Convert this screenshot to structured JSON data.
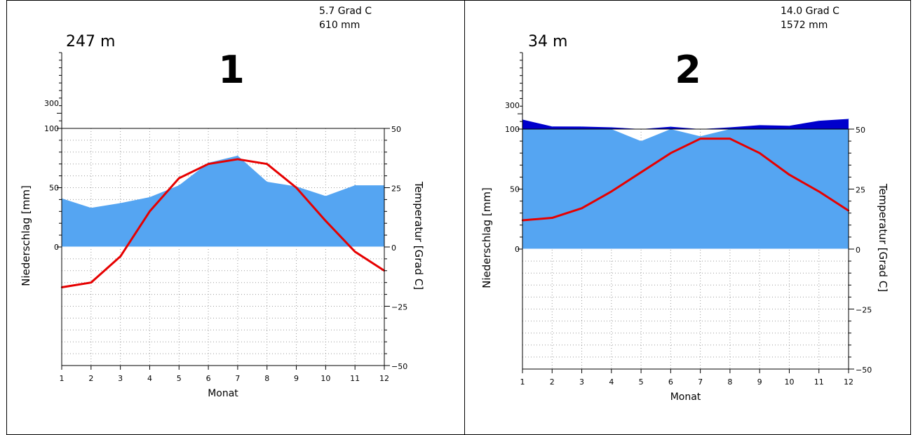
{
  "colors": {
    "precip_fill": "#55a5f2",
    "precip_excess": "#0000cc",
    "temperature_line": "#e60000",
    "axis": "#000000",
    "grid": "#9a9a9a"
  },
  "chart_data": [
    {
      "type": "area",
      "panel_number": "1",
      "elevation": "247 m",
      "annual_temperature": "5.7 Grad C",
      "annual_precipitation": "610 mm",
      "xlabel": "Monat",
      "ylabel_left": "Niederschlag [mm]",
      "ylabel_right": "Temperatur [Grad C]",
      "x": [
        1,
        2,
        3,
        4,
        5,
        6,
        7,
        8,
        9,
        10,
        11,
        12
      ],
      "x_tick_labels": [
        "1",
        "2",
        "3",
        "4",
        "5",
        "6",
        "7",
        "8",
        "9",
        "10",
        "11",
        "12"
      ],
      "left_tick_labels": [
        "0",
        "50",
        "100",
        "300"
      ],
      "right_tick_labels": [
        "50",
        "25",
        "0",
        "−25",
        "−50"
      ],
      "ylim_precip": [
        0,
        100
      ],
      "ylim_temp": [
        -50,
        50
      ],
      "grid": true,
      "series": [
        {
          "kind": "precipitation",
          "values": [
            41,
            33,
            37,
            42,
            52,
            71,
            77,
            55,
            51,
            43,
            52,
            52
          ]
        },
        {
          "kind": "temperature",
          "values": [
            -17,
            -15,
            -4,
            15,
            29,
            35,
            37,
            35,
            25,
            11,
            -2,
            -10
          ]
        }
      ]
    },
    {
      "type": "area",
      "panel_number": "2",
      "elevation": "34 m",
      "annual_temperature": "14.0 Grad C",
      "annual_precipitation": "1572 mm",
      "xlabel": "Monat",
      "ylabel_left": "Niederschlag [mm]",
      "ylabel_right": "Temperatur [Grad C]",
      "x": [
        1,
        2,
        3,
        4,
        5,
        6,
        7,
        8,
        9,
        10,
        11,
        12
      ],
      "x_tick_labels": [
        "1",
        "2",
        "3",
        "4",
        "5",
        "6",
        "7",
        "8",
        "9",
        "10",
        "11",
        "12"
      ],
      "left_tick_labels": [
        "0",
        "50",
        "100",
        "300"
      ],
      "right_tick_labels": [
        "50",
        "25",
        "0",
        "−25",
        "−50"
      ],
      "ylim_precip": [
        0,
        100
      ],
      "ylim_temp": [
        -50,
        50
      ],
      "grid": true,
      "series": [
        {
          "kind": "precipitation",
          "values": [
            180,
            122,
            121,
            115,
            90,
            120,
            94,
            115,
            133,
            128,
            170,
            185
          ]
        },
        {
          "kind": "temperature",
          "values": [
            12,
            13,
            17,
            24,
            32,
            40,
            46,
            46,
            40,
            31,
            24,
            16
          ]
        }
      ]
    }
  ]
}
